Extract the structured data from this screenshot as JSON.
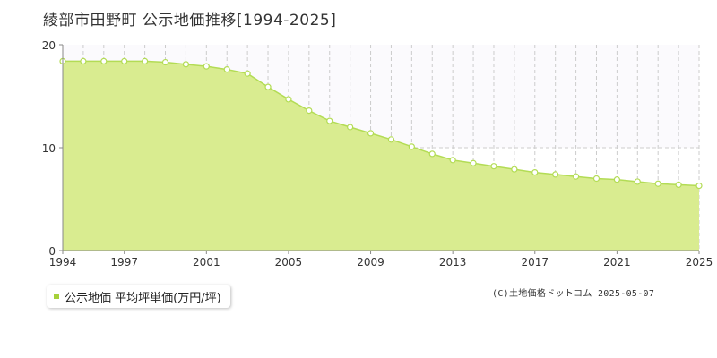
{
  "title": "綾部市田野町 公示地価推移[1994-2025]",
  "legend": {
    "label": "公示地価 平均坪単価(万円/坪)",
    "color": "#a6d13a"
  },
  "credit": "(C)土地価格ドットコム 2025-05-07",
  "colors": {
    "fill": "#d9ec90",
    "line": "#b3dc55",
    "point_fill": "#ffffff",
    "grid_dash": "#cccccc",
    "axis": "#888888"
  },
  "chart_data": {
    "type": "area",
    "x_tick_labels": [
      "1994",
      "1997",
      "2001",
      "2005",
      "2009",
      "2013",
      "2017",
      "2021",
      "2025"
    ],
    "y_tick_labels": [
      "0",
      "10",
      "20"
    ],
    "ylim": [
      0,
      20
    ],
    "xlim": [
      1994,
      2025
    ],
    "grid": true,
    "series": [
      {
        "name": "公示地価 平均坪単価(万円/坪)",
        "x": [
          1994,
          1995,
          1996,
          1997,
          1998,
          1999,
          2000,
          2001,
          2002,
          2003,
          2004,
          2005,
          2006,
          2007,
          2008,
          2009,
          2010,
          2011,
          2012,
          2013,
          2014,
          2015,
          2016,
          2017,
          2018,
          2019,
          2020,
          2021,
          2022,
          2023,
          2024,
          2025
        ],
        "values": [
          18.4,
          18.4,
          18.4,
          18.4,
          18.4,
          18.3,
          18.1,
          17.9,
          17.6,
          17.2,
          15.9,
          14.7,
          13.6,
          12.6,
          12.0,
          11.4,
          10.8,
          10.1,
          9.4,
          8.8,
          8.5,
          8.2,
          7.9,
          7.6,
          7.4,
          7.2,
          7.0,
          6.9,
          6.7,
          6.5,
          6.4,
          6.3
        ]
      }
    ]
  }
}
